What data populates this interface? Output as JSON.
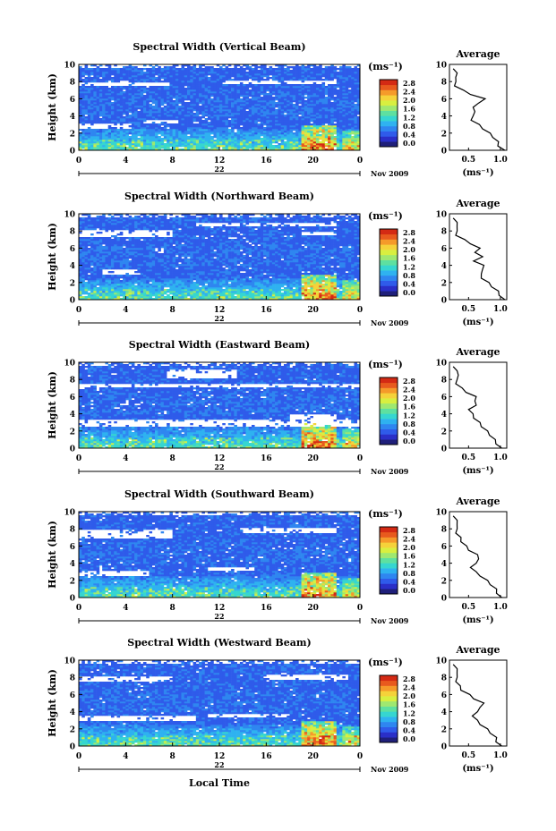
{
  "figure": {
    "date_label": "Nov 2009",
    "x_axis_label": "Local Time",
    "day_label": "22",
    "y_axis_label": "Height (km)",
    "unit_label": "(ms⁻¹)",
    "avg_title": "Average",
    "avg_xlabel": "(ms⁻¹)"
  },
  "colorbar": {
    "ticks": [
      "0.0",
      "0.4",
      "0.8",
      "1.2",
      "1.6",
      "2.0",
      "2.4",
      "2.8"
    ],
    "colors": [
      "#1f1f7a",
      "#2a2fc8",
      "#2f5bea",
      "#2f86f0",
      "#2fb2f0",
      "#36d6d0",
      "#5ee0a0",
      "#9fe870",
      "#d8ef40",
      "#f5d23a",
      "#f59a2a",
      "#e85a1e",
      "#d42a14"
    ]
  },
  "chart_data": [
    {
      "type": "heatmap",
      "title": "Spectral Width (Vertical Beam)",
      "x_ticks": [
        "0",
        "4",
        "8",
        "12",
        "16",
        "20",
        "0"
      ],
      "xlim": [
        0,
        24
      ],
      "y_ticks": [
        "0",
        "2",
        "4",
        "6",
        "8",
        "10"
      ],
      "ylim": [
        0,
        10
      ],
      "gaps": [
        [
          0,
          7.4,
          7.8,
          0.6
        ],
        [
          12.2,
          7.8,
          7.6,
          0.4
        ],
        [
          19.5,
          7.8,
          2.5,
          0.4
        ],
        [
          0,
          2.6,
          4.5,
          0.6
        ],
        [
          5.5,
          3.2,
          3,
          0.3
        ]
      ],
      "average": {
        "title": "Average",
        "x_ticks": [
          "0.5",
          "1.0"
        ],
        "xlim": [
          0.2,
          1.1
        ],
        "y_ticks": [
          "0",
          "2",
          "4",
          "6",
          "8",
          "10"
        ],
        "ylim": [
          0,
          10
        ],
        "profile": [
          [
            1.05,
            0
          ],
          [
            0.98,
            0.5
          ],
          [
            0.95,
            1
          ],
          [
            0.9,
            1.5
          ],
          [
            0.82,
            2
          ],
          [
            0.74,
            2.5
          ],
          [
            0.65,
            3
          ],
          [
            0.56,
            3.5
          ],
          [
            0.55,
            4
          ],
          [
            0.62,
            4.5
          ],
          [
            0.55,
            5
          ],
          [
            0.68,
            5.5
          ],
          [
            0.74,
            6
          ],
          [
            0.55,
            6.5
          ],
          [
            0.4,
            7
          ],
          [
            0.3,
            7.5
          ],
          [
            0.28,
            8
          ],
          [
            0.32,
            8.5
          ],
          [
            0.3,
            9
          ],
          [
            0.28,
            9.5
          ]
        ]
      }
    },
    {
      "type": "heatmap",
      "title": "Spectral Width (Northward Beam)",
      "x_ticks": [
        "0",
        "4",
        "8",
        "12",
        "16",
        "20",
        "0"
      ],
      "xlim": [
        0,
        24
      ],
      "y_ticks": [
        "0",
        "2",
        "4",
        "6",
        "8",
        "10"
      ],
      "ylim": [
        0,
        10
      ],
      "gaps": [
        [
          0,
          7.2,
          8,
          1.0
        ],
        [
          10,
          8.5,
          12,
          0.5
        ],
        [
          2,
          3.0,
          3,
          0.5
        ],
        [
          19,
          7.6,
          3,
          0.4
        ]
      ],
      "average": {
        "title": "Average",
        "x_ticks": [
          "0.5",
          "1.0"
        ],
        "xlim": [
          0.2,
          1.1
        ],
        "y_ticks": [
          "0",
          "2",
          "4",
          "6",
          "8",
          "10"
        ],
        "ylim": [
          0,
          10
        ],
        "profile": [
          [
            1.05,
            0
          ],
          [
            1.0,
            0.5
          ],
          [
            0.95,
            1
          ],
          [
            0.88,
            1.5
          ],
          [
            0.8,
            2
          ],
          [
            0.72,
            2.5
          ],
          [
            0.68,
            3
          ],
          [
            0.74,
            3.5
          ],
          [
            0.72,
            4
          ],
          [
            0.6,
            4.5
          ],
          [
            0.7,
            5
          ],
          [
            0.62,
            5.5
          ],
          [
            0.66,
            6
          ],
          [
            0.55,
            6.5
          ],
          [
            0.42,
            7
          ],
          [
            0.32,
            7.5
          ],
          [
            0.3,
            8
          ],
          [
            0.34,
            8.5
          ],
          [
            0.3,
            9
          ],
          [
            0.28,
            9.5
          ]
        ]
      }
    },
    {
      "type": "heatmap",
      "title": "Spectral Width (Eastward Beam)",
      "x_ticks": [
        "0",
        "4",
        "8",
        "12",
        "16",
        "20",
        "0"
      ],
      "xlim": [
        0,
        24
      ],
      "y_ticks": [
        "0",
        "2",
        "4",
        "6",
        "8",
        "10"
      ],
      "ylim": [
        0,
        10
      ],
      "gaps": [
        [
          0,
          7.0,
          24,
          0.6
        ],
        [
          0,
          2.6,
          24,
          0.8
        ],
        [
          7.5,
          8.2,
          6,
          1.0
        ],
        [
          18,
          3.4,
          4,
          0.6
        ]
      ],
      "average": {
        "title": "Average",
        "x_ticks": [
          "0.5",
          "1.0"
        ],
        "xlim": [
          0.2,
          1.1
        ],
        "y_ticks": [
          "0",
          "2",
          "4",
          "6",
          "8",
          "10"
        ],
        "ylim": [
          0,
          10
        ],
        "profile": [
          [
            1.0,
            0
          ],
          [
            0.95,
            0.5
          ],
          [
            0.9,
            1
          ],
          [
            0.85,
            1.5
          ],
          [
            0.78,
            2
          ],
          [
            0.72,
            2.5
          ],
          [
            0.66,
            3
          ],
          [
            0.6,
            3.5
          ],
          [
            0.55,
            4
          ],
          [
            0.52,
            4.5
          ],
          [
            0.6,
            5
          ],
          [
            0.62,
            5.5
          ],
          [
            0.6,
            6
          ],
          [
            0.48,
            6.5
          ],
          [
            0.38,
            7
          ],
          [
            0.32,
            7.5
          ],
          [
            0.3,
            8
          ],
          [
            0.36,
            8.5
          ],
          [
            0.3,
            9
          ],
          [
            0.28,
            9.5
          ]
        ]
      }
    },
    {
      "type": "heatmap",
      "title": "Spectral Width (Southward Beam)",
      "x_ticks": [
        "0",
        "4",
        "8",
        "12",
        "16",
        "20",
        "0"
      ],
      "xlim": [
        0,
        24
      ],
      "y_ticks": [
        "0",
        "2",
        "4",
        "6",
        "8",
        "10"
      ],
      "ylim": [
        0,
        10
      ],
      "gaps": [
        [
          0,
          6.8,
          8,
          1.2
        ],
        [
          14,
          7.6,
          8,
          0.6
        ],
        [
          0,
          2.6,
          6,
          0.6
        ],
        [
          11,
          3.2,
          4,
          0.4
        ]
      ],
      "average": {
        "title": "Average",
        "x_ticks": [
          "0.5",
          "1.0"
        ],
        "xlim": [
          0.2,
          1.1
        ],
        "y_ticks": [
          "0",
          "2",
          "4",
          "6",
          "8",
          "10"
        ],
        "ylim": [
          0,
          10
        ],
        "profile": [
          [
            1.0,
            0
          ],
          [
            0.96,
            0.5
          ],
          [
            0.92,
            1
          ],
          [
            0.86,
            1.5
          ],
          [
            0.78,
            2
          ],
          [
            0.7,
            2.5
          ],
          [
            0.6,
            3
          ],
          [
            0.55,
            3.5
          ],
          [
            0.6,
            4
          ],
          [
            0.68,
            4.5
          ],
          [
            0.62,
            5
          ],
          [
            0.52,
            5.5
          ],
          [
            0.45,
            6
          ],
          [
            0.4,
            6.5
          ],
          [
            0.36,
            7
          ],
          [
            0.32,
            7.5
          ],
          [
            0.3,
            8
          ],
          [
            0.34,
            8.5
          ],
          [
            0.3,
            9
          ],
          [
            0.28,
            9.5
          ]
        ]
      }
    },
    {
      "type": "heatmap",
      "title": "Spectral Width (Westward Beam)",
      "x_ticks": [
        "0",
        "4",
        "8",
        "12",
        "16",
        "20",
        "0"
      ],
      "xlim": [
        0,
        24
      ],
      "y_ticks": [
        "0",
        "2",
        "4",
        "6",
        "8",
        "10"
      ],
      "ylim": [
        0,
        10
      ],
      "gaps": [
        [
          0,
          7.4,
          8,
          0.8
        ],
        [
          16,
          7.8,
          7,
          0.6
        ],
        [
          0,
          3.0,
          10,
          0.5
        ],
        [
          11,
          3.4,
          7,
          0.4
        ]
      ],
      "average": {
        "title": "Average",
        "x_ticks": [
          "0.5",
          "1.0"
        ],
        "xlim": [
          0.2,
          1.1
        ],
        "y_ticks": [
          "0",
          "2",
          "4",
          "6",
          "8",
          "10"
        ],
        "ylim": [
          0,
          10
        ],
        "profile": [
          [
            1.0,
            0
          ],
          [
            0.95,
            0.5
          ],
          [
            0.92,
            1
          ],
          [
            0.86,
            1.5
          ],
          [
            0.78,
            2
          ],
          [
            0.7,
            2.5
          ],
          [
            0.62,
            3
          ],
          [
            0.58,
            3.5
          ],
          [
            0.62,
            4
          ],
          [
            0.7,
            4.5
          ],
          [
            0.72,
            5
          ],
          [
            0.6,
            5.5
          ],
          [
            0.5,
            6
          ],
          [
            0.4,
            6.5
          ],
          [
            0.35,
            7
          ],
          [
            0.32,
            7.5
          ],
          [
            0.3,
            8
          ],
          [
            0.34,
            8.5
          ],
          [
            0.3,
            9
          ],
          [
            0.28,
            9.5
          ]
        ]
      }
    }
  ]
}
